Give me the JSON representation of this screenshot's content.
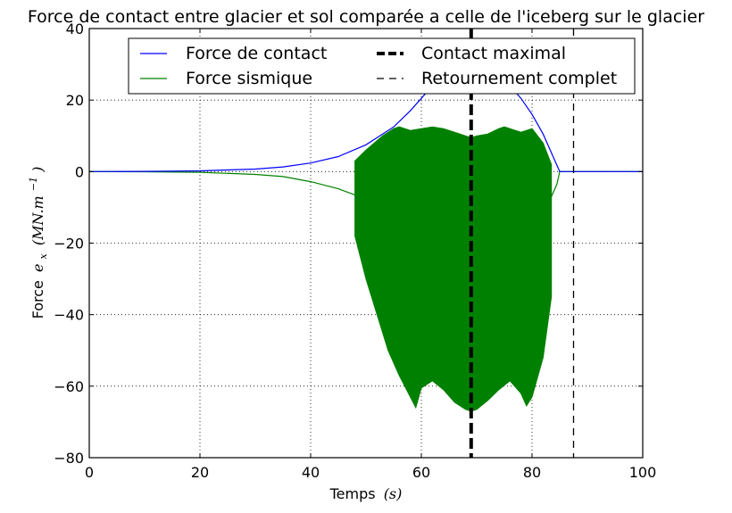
{
  "chart_data": {
    "type": "line",
    "title": "Force de contact entre glacier et sol comparée a celle de l'iceberg sur le glacier",
    "xlabel": "Temps",
    "xlabel_math": "(s)",
    "ylabel": "Force",
    "ylabel_math": "e",
    "ylabel_math_sub": "x",
    "ylabel_math_rest": "(MN.m",
    "ylabel_math_sup": "−1",
    "ylabel_math_close": ")",
    "xlim": [
      0,
      100
    ],
    "ylim": [
      -80,
      40
    ],
    "xticks": [
      0,
      20,
      40,
      60,
      80,
      100
    ],
    "yticks": [
      -80,
      -60,
      -40,
      -20,
      0,
      20,
      40
    ],
    "ytick_labels": [
      "−80",
      "−60",
      "−40",
      "−20",
      "0",
      "20",
      "40"
    ],
    "grid": true,
    "legend_position": "top-center",
    "series": [
      {
        "name": "Force de contact",
        "color": "#0000ff",
        "x": [
          0,
          10,
          20,
          30,
          35,
          40,
          45,
          50,
          55,
          58,
          60,
          62,
          64,
          66,
          69,
          72,
          74,
          76,
          78,
          80,
          82,
          84,
          85,
          86,
          88,
          90,
          100
        ],
        "y": [
          0,
          0.05,
          0.2,
          0.7,
          1.3,
          2.4,
          4.2,
          7.5,
          12.5,
          17,
          20.5,
          24,
          27,
          29.5,
          31,
          29.5,
          27,
          24,
          20.5,
          16,
          10.5,
          3.5,
          0,
          0,
          0,
          0,
          0
        ]
      },
      {
        "name": "Force sismique",
        "color": "#008000",
        "x": [
          0,
          10,
          20,
          30,
          35,
          40,
          45,
          48
        ],
        "y": [
          0,
          -0.05,
          -0.2,
          -0.8,
          -1.4,
          -2.8,
          -4.8,
          -6.5
        ],
        "x_tail": [
          83.5,
          84.5,
          85,
          86,
          100
        ],
        "y_tail": [
          -7,
          -3.5,
          0,
          0,
          0
        ],
        "band_upper": {
          "x": [
            48,
            50,
            53,
            55,
            56,
            58,
            60,
            62,
            64,
            66,
            68,
            69,
            70,
            72,
            74,
            75,
            76,
            78,
            79,
            80,
            82,
            83.5
          ],
          "y": [
            3,
            6,
            10,
            12,
            12.5,
            11.5,
            12,
            12.5,
            12,
            11,
            10,
            9.5,
            10,
            10.5,
            12,
            12.5,
            12,
            11,
            11.5,
            12,
            8,
            2
          ]
        },
        "band_lower": {
          "x": [
            48,
            50,
            52,
            54,
            56,
            58,
            59,
            60,
            62,
            64,
            66,
            68,
            69,
            70,
            72,
            74,
            76,
            78,
            79,
            80,
            82,
            83.5
          ],
          "y": [
            -18,
            -30,
            -40,
            -50,
            -57,
            -63,
            -66,
            -60.5,
            -58.5,
            -61,
            -64.5,
            -66.5,
            -67,
            -66.5,
            -64,
            -61,
            -58.5,
            -62,
            -65.5,
            -63,
            -52,
            -35
          ]
        }
      },
      {
        "name": "Contact maximal",
        "color": "#000000",
        "type": "vline",
        "x": 69,
        "style": "thick-dashed"
      },
      {
        "name": "Retournement complet",
        "color": "#000000",
        "type": "vline",
        "x": 87.5,
        "style": "dashed"
      }
    ]
  }
}
